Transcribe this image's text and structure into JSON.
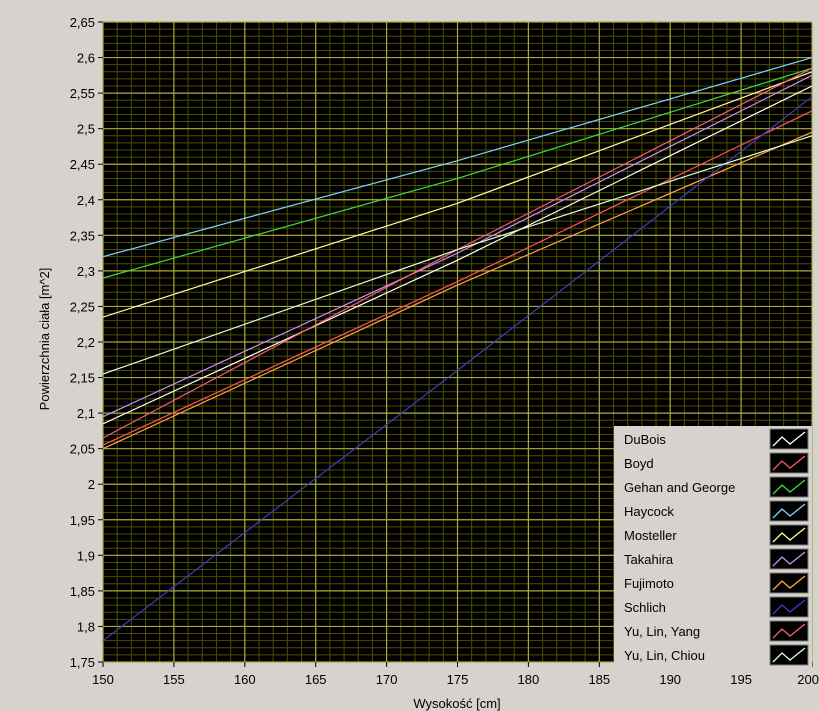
{
  "chart_data": {
    "type": "line",
    "title": "",
    "xlabel": "Wysokość [cm]",
    "ylabel": "Powierzchnia ciała [m^2]",
    "xlim": [
      150,
      200
    ],
    "ylim": [
      1.75,
      2.65
    ],
    "xticks": [
      150,
      155,
      160,
      165,
      170,
      175,
      180,
      185,
      190,
      195,
      200
    ],
    "yticks": [
      1.75,
      1.8,
      1.85,
      1.9,
      1.95,
      2,
      2.05,
      2.1,
      2.15,
      2.2,
      2.25,
      2.3,
      2.35,
      2.4,
      2.45,
      2.5,
      2.55,
      2.6,
      2.65
    ],
    "xtick_labels": [
      "150",
      "155",
      "160",
      "165",
      "170",
      "175",
      "180",
      "185",
      "190",
      "195",
      "200"
    ],
    "ytick_labels": [
      "1,75",
      "1,8",
      "1,85",
      "1,9",
      "1,95",
      "2",
      "2,05",
      "2,1",
      "2,15",
      "2,2",
      "2,25",
      "2,3",
      "2,35",
      "2,4",
      "2,45",
      "2,5",
      "2,55",
      "2,6",
      "2,65"
    ],
    "grid": true,
    "minor_grid": true,
    "legend_position": "bottom-right",
    "series": [
      {
        "name": "DuBois",
        "color": "#ffffff",
        "x": [
          150,
          175,
          200
        ],
        "y": [
          2.085,
          2.315,
          2.56
        ]
      },
      {
        "name": "Boyd",
        "color": "#ff5555",
        "x": [
          150,
          175,
          200
        ],
        "y": [
          2.055,
          2.285,
          2.525
        ]
      },
      {
        "name": "Gehan and George",
        "color": "#3fdc3f",
        "x": [
          150,
          175,
          200
        ],
        "y": [
          2.29,
          2.43,
          2.585
        ]
      },
      {
        "name": "Haycock",
        "color": "#7fd3ff",
        "x": [
          150,
          175,
          200
        ],
        "y": [
          2.32,
          2.455,
          2.6
        ]
      },
      {
        "name": "Mosteller",
        "color": "#ffffa0",
        "x": [
          150,
          175,
          200
        ],
        "y": [
          2.235,
          2.395,
          2.58
        ]
      },
      {
        "name": "Takahira",
        "color": "#c88cff",
        "x": [
          150,
          175,
          200
        ],
        "y": [
          2.095,
          2.325,
          2.575
        ]
      },
      {
        "name": "Fujimoto",
        "color": "#ffa640",
        "x": [
          150,
          175,
          200
        ],
        "y": [
          2.05,
          2.28,
          2.495
        ]
      },
      {
        "name": "Schlich",
        "color": "#3c3cc8",
        "x": [
          150,
          175,
          200
        ],
        "y": [
          1.78,
          2.16,
          2.545
        ]
      },
      {
        "name": "Yu, Lin, Yang",
        "color": "#ff5a78",
        "x": [
          150,
          175,
          200
        ],
        "y": [
          2.065,
          2.33,
          2.585
        ]
      },
      {
        "name": "Yu, Lin, Chiou",
        "color": "#dcffdc",
        "x": [
          150,
          175,
          200
        ],
        "y": [
          2.155,
          2.33,
          2.49
        ]
      }
    ]
  }
}
